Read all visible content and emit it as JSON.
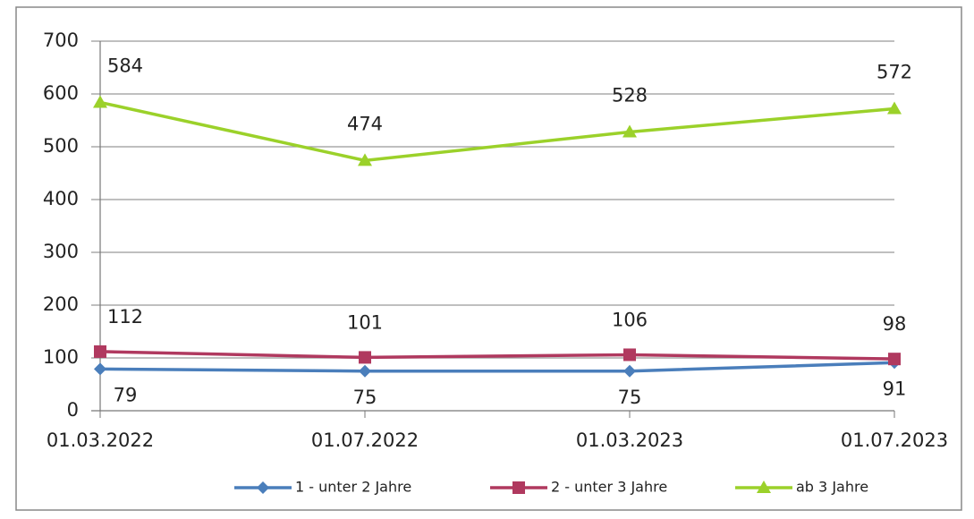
{
  "chart_data": {
    "type": "line",
    "categories": [
      "01.03.2022",
      "01.07.2022",
      "01.03.2023",
      "01.07.2023"
    ],
    "series": [
      {
        "name": "1 - unter 2 Jahre",
        "color": "#4a7ebb",
        "marker": "diamond",
        "values": [
          79,
          75,
          75,
          91
        ]
      },
      {
        "name": "2 - unter 3 Jahre",
        "color": "#b0395f",
        "marker": "square",
        "values": [
          112,
          101,
          106,
          98
        ]
      },
      {
        "name": "ab 3 Jahre",
        "color": "#9bd12a",
        "marker": "triangle",
        "values": [
          584,
          474,
          528,
          572
        ]
      }
    ],
    "ylim": [
      0,
      700
    ],
    "yticks": [
      0,
      100,
      200,
      300,
      400,
      500,
      600,
      700
    ],
    "grid": true,
    "legend": "bottom"
  }
}
